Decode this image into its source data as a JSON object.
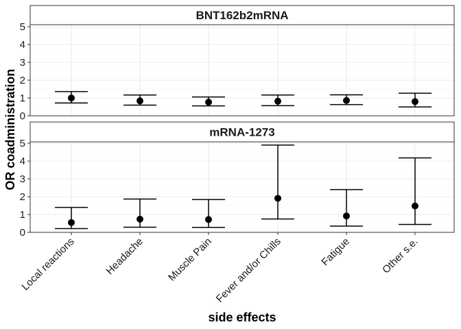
{
  "chart_data": {
    "type": "scatter",
    "xlabel": "side effects",
    "ylabel": "OR coadministration",
    "categories": [
      "Local reactions",
      "Headache",
      "Muscle Pain",
      "Fever and/or Chills",
      "Fatigue",
      "Other s.e."
    ],
    "ylim": [
      0,
      5
    ],
    "yticks": [
      "0",
      "1",
      "2",
      "3",
      "4",
      "5"
    ],
    "grid": true,
    "panels": [
      {
        "name": "BNT162b2mRNA",
        "points": [
          {
            "category": "Local reactions",
            "or": 1.0,
            "lower": 0.72,
            "upper": 1.36
          },
          {
            "category": "Headache",
            "or": 0.84,
            "lower": 0.6,
            "upper": 1.17
          },
          {
            "category": "Muscle Pain",
            "or": 0.77,
            "lower": 0.56,
            "upper": 1.06
          },
          {
            "category": "Fever and/or Chills",
            "or": 0.82,
            "lower": 0.57,
            "upper": 1.17
          },
          {
            "category": "Fatigue",
            "or": 0.86,
            "lower": 0.63,
            "upper": 1.18
          },
          {
            "category": "Other s.e.",
            "or": 0.8,
            "lower": 0.5,
            "upper": 1.27
          }
        ]
      },
      {
        "name": "mRNA-1273",
        "points": [
          {
            "category": "Local reactions",
            "or": 0.55,
            "lower": 0.21,
            "upper": 1.4
          },
          {
            "category": "Headache",
            "or": 0.74,
            "lower": 0.29,
            "upper": 1.87
          },
          {
            "category": "Muscle Pain",
            "or": 0.72,
            "lower": 0.28,
            "upper": 1.84
          },
          {
            "category": "Fever and/or Chills",
            "or": 1.91,
            "lower": 0.75,
            "upper": 4.9
          },
          {
            "category": "Fatigue",
            "or": 0.92,
            "lower": 0.35,
            "upper": 2.4
          },
          {
            "category": "Other s.e.",
            "or": 1.48,
            "lower": 0.44,
            "upper": 4.18
          }
        ]
      }
    ],
    "colors": {
      "point": "#000000",
      "errorbar": "#000000",
      "grid": "#ebebeb",
      "panel_border": "#333333",
      "strip_fill": "#ffffff"
    }
  }
}
